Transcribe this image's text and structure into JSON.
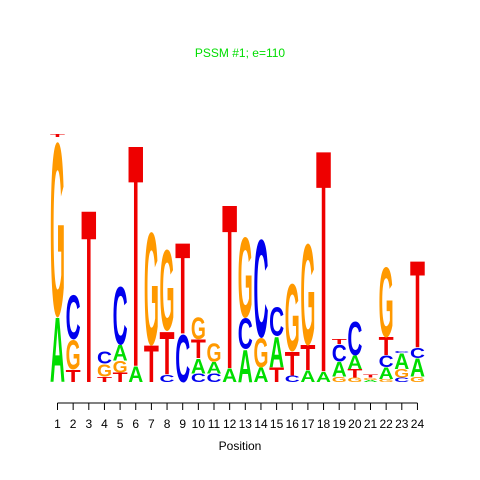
{
  "chart_data": {
    "type": "sequence-logo",
    "title": "PSSM #1; e=110",
    "xlabel": "Position",
    "ylabel": "",
    "alphabet": [
      "A",
      "C",
      "G",
      "T"
    ],
    "colors": {
      "A": "#00dd00",
      "C": "#0000ee",
      "G": "#ff9900",
      "T": "#ee0000"
    },
    "positions": [
      1,
      2,
      3,
      4,
      5,
      6,
      7,
      8,
      9,
      10,
      11,
      12,
      13,
      14,
      15,
      16,
      17,
      18,
      19,
      20,
      21,
      22,
      23,
      24
    ],
    "heights": [
      {
        "A": 0.62,
        "G": 1.65,
        "T": 0.03
      },
      {
        "T": 0.12,
        "G": 0.28,
        "C": 0.42
      },
      {
        "T": 1.65
      },
      {
        "T": 0.05,
        "G": 0.12,
        "C": 0.12
      },
      {
        "T": 0.09,
        "G": 0.11,
        "A": 0.15,
        "C": 0.55
      },
      {
        "A": 0.15,
        "T": 2.12
      },
      {
        "T": 0.35,
        "G": 1.07
      },
      {
        "C": 0.07,
        "T": 0.41,
        "G": 0.77
      },
      {
        "C": 0.45,
        "T": 0.87
      },
      {
        "C": 0.08,
        "A": 0.14,
        "T": 0.18,
        "G": 0.21
      },
      {
        "C": 0.08,
        "A": 0.11,
        "G": 0.17
      },
      {
        "A": 0.13,
        "T": 1.57
      },
      {
        "A": 0.31,
        "C": 0.29,
        "G": 0.76
      },
      {
        "A": 0.14,
        "G": 0.28,
        "C": 0.93
      },
      {
        "T": 0.14,
        "A": 0.29,
        "C": 0.27
      },
      {
        "C": 0.06,
        "T": 0.23,
        "G": 0.64
      },
      {
        "A": 0.11,
        "T": 0.24,
        "G": 0.96
      },
      {
        "A": 0.1,
        "T": 2.12
      },
      {
        "G": 0.05,
        "A": 0.14,
        "C": 0.16,
        "T": 0.05
      },
      {
        "G": 0.04,
        "T": 0.08,
        "A": 0.13,
        "C": 0.32
      },
      {
        "A": 0.02,
        "G": 0.02,
        "T": 0.03
      },
      {
        "G": 0.03,
        "A": 0.11,
        "C": 0.11,
        "T": 0.17,
        "G2": 0.66
      },
      {
        "C": 0.04,
        "G": 0.08,
        "A": 0.15,
        "C2": 0.02
      },
      {
        "G": 0.05,
        "A": 0.17,
        "C": 0.1,
        "T": 0.83
      }
    ],
    "ylim": [
      0,
      2.3
    ]
  }
}
